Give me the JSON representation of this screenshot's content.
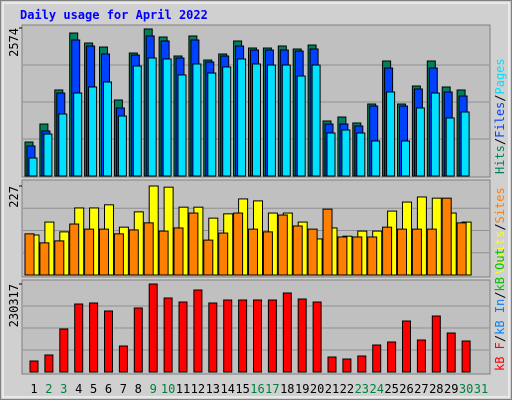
{
  "chart_data": {
    "type": "bar",
    "title": "Daily usage for April 2022",
    "legend_separator": "/",
    "categories": [
      "1",
      "2",
      "3",
      "4",
      "5",
      "6",
      "7",
      "8",
      "9",
      "10",
      "11",
      "12",
      "13",
      "14",
      "15",
      "16",
      "17",
      "18",
      "19",
      "20",
      "21",
      "22",
      "23",
      "24",
      "25",
      "26",
      "27",
      "28",
      "29",
      "30",
      "31"
    ],
    "category_colors": [
      "#000000",
      "#008040",
      "#008040",
      "#000000",
      "#000000",
      "#000000",
      "#000000",
      "#000000",
      "#008040",
      "#008040",
      "#000000",
      "#000000",
      "#000000",
      "#000000",
      "#000000",
      "#008040",
      "#008040",
      "#000000",
      "#000000",
      "#000000",
      "#000000",
      "#000000",
      "#008040",
      "#008040",
      "#000000",
      "#000000",
      "#000000",
      "#000000",
      "#000000",
      "#008040",
      "#008040"
    ],
    "panels": [
      {
        "ylim": [
          0,
          2574
        ],
        "yticks": [
          2574
        ],
        "series": [
          {
            "name": "Hits",
            "color": "#00805c",
            "values": [
              591,
              904,
              1496,
              2487,
              2313,
              2243,
              1322,
              2139,
              2557,
              2417,
              2087,
              2435,
              2017,
              2122,
              2348,
              2226,
              2226,
              2261,
              2209,
              2278,
              957,
              1026,
              922,
              1252,
              2000,
              1252,
              1565,
              2000,
              1548,
              1496,
              null
            ]
          },
          {
            "name": "Files",
            "color": "#0040ff",
            "values": [
              522,
              783,
              1443,
              2365,
              2261,
              2122,
              1183,
              2104,
              2435,
              2348,
              2052,
              2365,
              1983,
              2087,
              2261,
              2191,
              2191,
              2191,
              2174,
              2209,
              904,
              904,
              870,
              1217,
              1878,
              1217,
              1513,
              1878,
              1461,
              1391,
              null
            ]
          },
          {
            "name": "Pages",
            "color": "#00e0ff",
            "values": [
              313,
              730,
              1078,
              1443,
              1548,
              1635,
              1043,
              1913,
              2052,
              2035,
              1757,
              1948,
              1791,
              1896,
              2035,
              1948,
              1930,
              1930,
              1739,
              1930,
              748,
              800,
              748,
              609,
              1461,
              609,
              1183,
              1443,
              1009,
              1113,
              null
            ]
          }
        ]
      },
      {
        "ylim": [
          0,
          227
        ],
        "yticks": [
          227
        ],
        "series": [
          {
            "name": "Visits",
            "color": "#ffff00",
            "values": [
              102,
              135,
              110,
              171,
              171,
              179,
              122,
              161,
              227,
              224,
              173,
              173,
              145,
              156,
              194,
              189,
              158,
              158,
              135,
              92,
              120,
              99,
              112,
              112,
              163,
              186,
              199,
              196,
              158,
              135,
              null
            ]
          },
          {
            "name": "Sites",
            "color": "#ff8000",
            "values": [
              105,
              82,
              87,
              130,
              117,
              117,
              105,
              115,
              133,
              112,
              120,
              158,
              89,
              107,
              158,
              117,
              110,
              153,
              125,
              117,
              168,
              97,
              97,
              97,
              122,
              117,
              117,
              117,
              196,
              133,
              null
            ]
          }
        ]
      },
      {
        "ylim": [
          0,
          230317
        ],
        "yticks": [
          230317
        ],
        "series": [
          {
            "name": "kB F",
            "color": "#ff0000",
            "values": [
              28790,
              44493,
              112541,
              177972,
              180589,
              159652,
              68049,
              167503,
              230317,
              193676,
              183206,
              214613,
              180589,
              188441,
              188441,
              188441,
              188441,
              206761,
              191059,
              183206,
              39258,
              34024,
              41876,
              70666,
              78517,
              133479,
              83752,
              146565,
              102073,
              81135,
              null
            ]
          },
          {
            "name": "kB In",
            "color": "#0080ff",
            "values": []
          },
          {
            "name": "kB Out",
            "color": "#00c000",
            "values": []
          }
        ]
      }
    ]
  }
}
